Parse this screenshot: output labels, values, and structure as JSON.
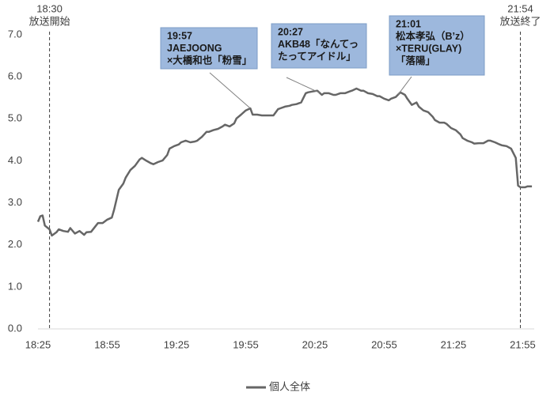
{
  "chart_data": {
    "type": "line",
    "x": [
      "18:25",
      "18:26",
      "18:27",
      "18:28",
      "18:30",
      "18:31",
      "18:33",
      "18:34",
      "18:36",
      "18:38",
      "18:39",
      "18:41",
      "18:43",
      "18:45",
      "18:46",
      "18:48",
      "18:50",
      "18:51",
      "18:53",
      "18:55",
      "18:57",
      "18:58",
      "19:00",
      "19:02",
      "19:03",
      "19:05",
      "19:07",
      "19:09",
      "19:10",
      "19:12",
      "19:14",
      "19:15",
      "19:17",
      "19:19",
      "19:21",
      "19:22",
      "19:24",
      "19:26",
      "19:27",
      "19:29",
      "19:31",
      "19:33",
      "19:34",
      "19:36",
      "19:38",
      "19:39",
      "19:41",
      "19:43",
      "19:45",
      "19:46",
      "19:48",
      "19:50",
      "19:51",
      "19:53",
      "19:55",
      "19:57",
      "19:58",
      "20:00",
      "20:02",
      "20:03",
      "20:05",
      "20:07",
      "20:09",
      "20:10",
      "20:12",
      "20:14",
      "20:15",
      "20:17",
      "20:19",
      "20:21",
      "20:22",
      "20:24",
      "20:26",
      "20:28",
      "20:29",
      "20:31",
      "20:33",
      "20:34",
      "20:36",
      "20:38",
      "20:40",
      "20:41",
      "20:43",
      "20:45",
      "20:46",
      "20:48",
      "20:50",
      "20:52",
      "20:53",
      "20:55",
      "20:57",
      "20:58",
      "21:00",
      "21:02",
      "21:04",
      "21:05",
      "21:07",
      "21:09",
      "21:10",
      "21:12",
      "21:14",
      "21:16",
      "21:17",
      "21:19",
      "21:21",
      "21:22",
      "21:24",
      "21:26",
      "21:28",
      "21:29",
      "21:31",
      "21:33",
      "21:34",
      "21:36",
      "21:38",
      "21:40",
      "21:41",
      "21:43",
      "21:45",
      "21:46",
      "21:48",
      "21:50",
      "21:52",
      "21:53",
      "21:54",
      "21:56",
      "21:57",
      "21:59"
    ],
    "series": [
      {
        "name": "個人全体",
        "color": "#666666",
        "values": [
          2.55,
          2.68,
          2.7,
          2.46,
          2.37,
          2.22,
          2.3,
          2.37,
          2.33,
          2.31,
          2.4,
          2.27,
          2.33,
          2.24,
          2.3,
          2.31,
          2.45,
          2.52,
          2.52,
          2.6,
          2.65,
          2.84,
          3.31,
          3.46,
          3.6,
          3.78,
          3.88,
          4.03,
          4.07,
          4.0,
          3.94,
          3.92,
          3.97,
          4.01,
          4.14,
          4.29,
          4.35,
          4.39,
          4.44,
          4.48,
          4.44,
          4.46,
          4.48,
          4.57,
          4.69,
          4.69,
          4.73,
          4.76,
          4.82,
          4.86,
          4.82,
          4.89,
          5.01,
          5.1,
          5.2,
          5.25,
          5.1,
          5.1,
          5.08,
          5.08,
          5.08,
          5.08,
          5.23,
          5.25,
          5.29,
          5.31,
          5.33,
          5.35,
          5.39,
          5.61,
          5.63,
          5.65,
          5.67,
          5.57,
          5.61,
          5.61,
          5.57,
          5.57,
          5.61,
          5.61,
          5.65,
          5.67,
          5.72,
          5.67,
          5.67,
          5.61,
          5.59,
          5.54,
          5.54,
          5.48,
          5.44,
          5.48,
          5.52,
          5.63,
          5.57,
          5.48,
          5.33,
          5.39,
          5.29,
          5.2,
          5.16,
          5.05,
          4.97,
          4.91,
          4.91,
          4.88,
          4.78,
          4.73,
          4.63,
          4.54,
          4.48,
          4.44,
          4.41,
          4.42,
          4.42,
          4.48,
          4.48,
          4.44,
          4.39,
          4.37,
          4.35,
          4.29,
          4.07,
          3.41,
          3.37,
          3.37,
          3.39,
          3.39
        ]
      }
    ],
    "xlim": [
      "18:25",
      "22:00"
    ],
    "xticks": [
      "18:25",
      "18:55",
      "19:25",
      "19:55",
      "20:25",
      "20:55",
      "21:25",
      "21:55"
    ],
    "ylim": [
      0,
      7
    ],
    "yticks": [
      {
        "value": 0,
        "label": "0.0"
      },
      {
        "value": 1,
        "label": "1.0"
      },
      {
        "value": 2,
        "label": "2.0"
      },
      {
        "value": 3,
        "label": "3.0"
      },
      {
        "value": 4,
        "label": "4.0"
      },
      {
        "value": 5,
        "label": "5.0"
      },
      {
        "value": 6,
        "label": "6.0"
      },
      {
        "value": 7,
        "label": "7.0"
      }
    ],
    "markers": [
      {
        "x": "18:30",
        "label": [
          "18:30",
          "放送開始"
        ]
      },
      {
        "x": "21:54",
        "label": [
          "21:54",
          "放送終了"
        ]
      }
    ],
    "callouts": [
      {
        "lines": [
          "19:57",
          "JAEJOONG",
          "×大橋和也「粉雪」"
        ]
      },
      {
        "lines": [
          "20:27",
          "AKB48「なんてっ",
          "たってアイドル」"
        ]
      },
      {
        "lines": [
          "21:01",
          "松本孝弘（B’z）",
          "×TERU(GLAY)",
          "「落陽」"
        ]
      }
    ],
    "legend": "bottom"
  }
}
